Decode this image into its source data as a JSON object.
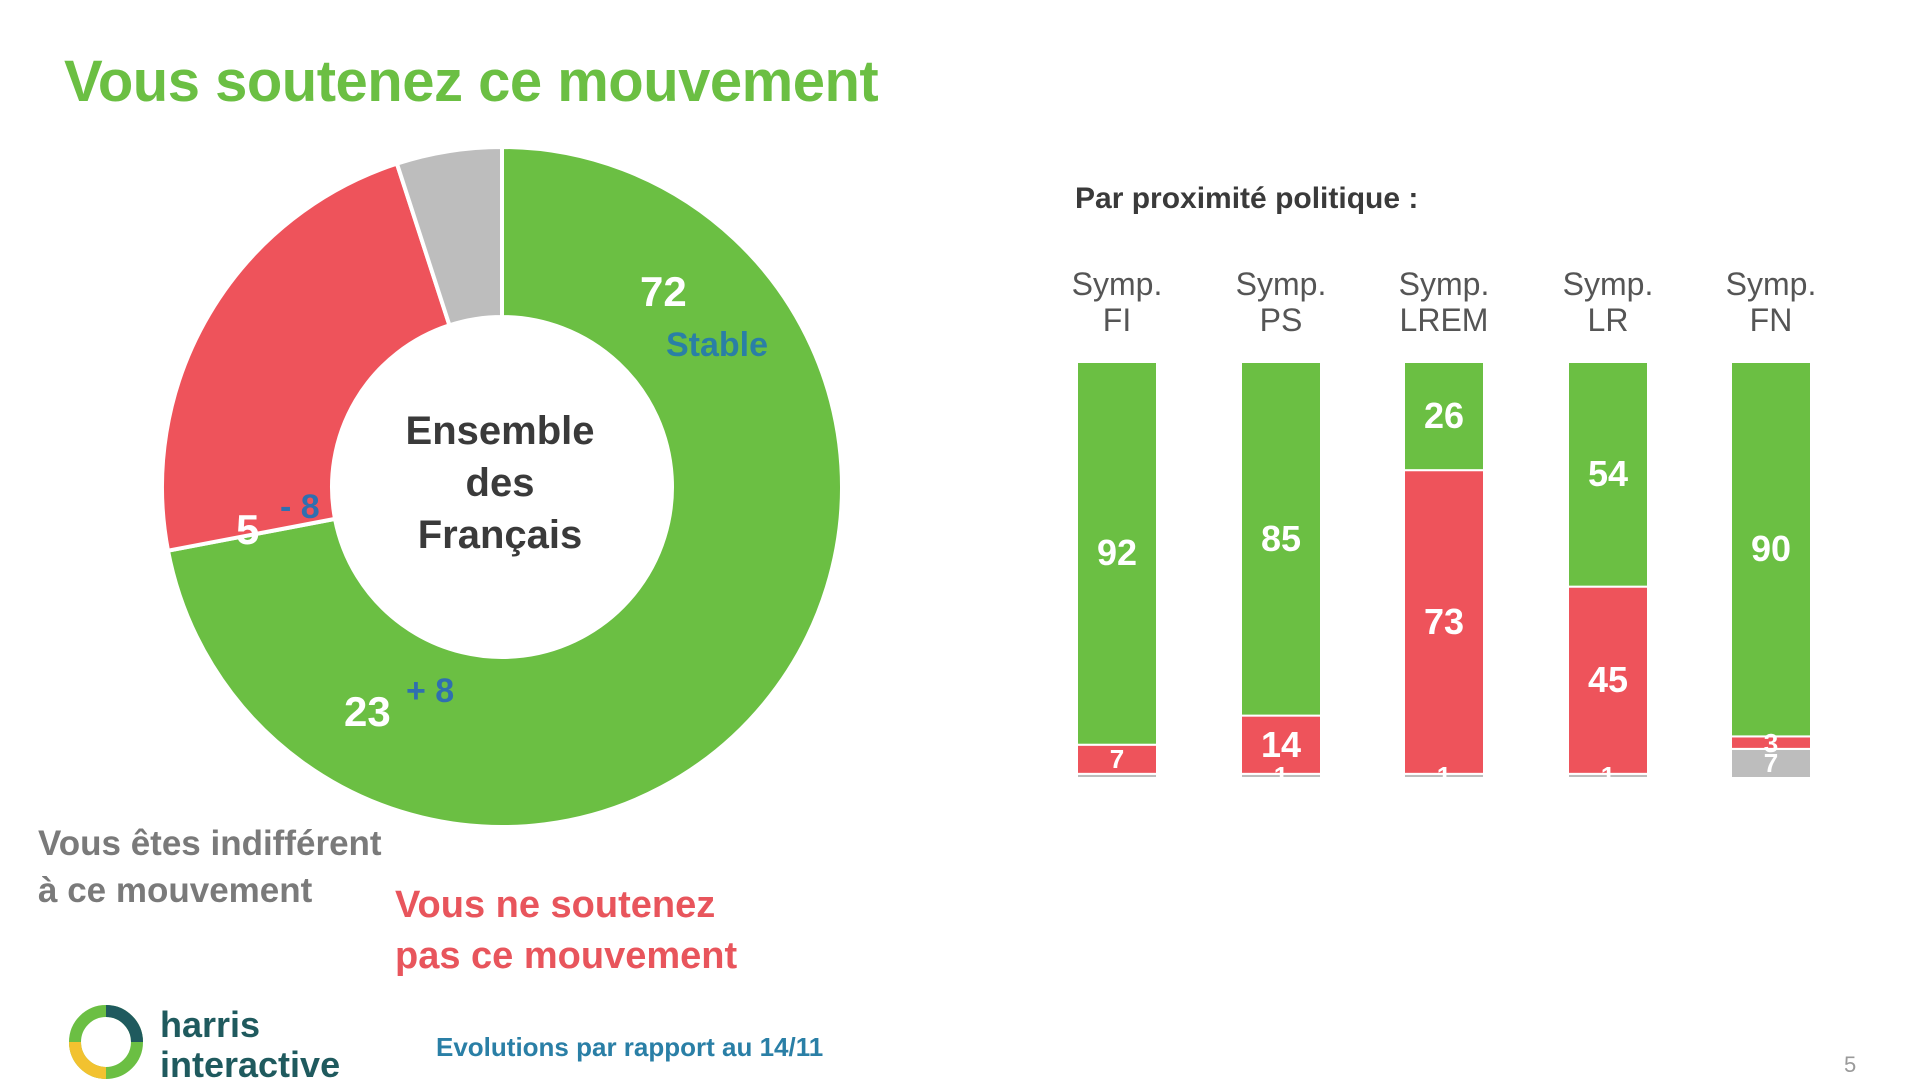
{
  "title": "Vous soutenez ce mouvement",
  "donut": {
    "center_lines": [
      "Ensemble",
      "des",
      "Français"
    ],
    "labels": {
      "support_value": "72",
      "support_evolution": "Stable",
      "indifferent_value": "5",
      "indifferent_evolution": "- 8",
      "oppose_value": "23",
      "oppose_evolution": "+ 8"
    }
  },
  "legend": {
    "indifferent_lines": [
      "Vous êtes indifférent",
      "à ce mouvement"
    ],
    "oppose_lines": [
      "Vous ne soutenez",
      "pas ce mouvement"
    ]
  },
  "bars_title": "Par proximité politique :",
  "footer_note": "Evolutions  par rapport au 14/11",
  "logo": {
    "line1": "harris",
    "line2": "interactive"
  },
  "page_number": "5",
  "colors": {
    "support": "#6bbf43",
    "oppose": "#ee535b",
    "indifferent": "#bdbdbd"
  },
  "chart_data": [
    {
      "type": "pie",
      "title": "Vous soutenez ce mouvement",
      "slices": [
        {
          "name": "Vous soutenez ce mouvement",
          "value": 72,
          "evolution": "Stable",
          "color": "#6bbf43"
        },
        {
          "name": "Vous ne soutenez pas ce mouvement",
          "value": 23,
          "evolution": "+ 8",
          "color": "#ee535b"
        },
        {
          "name": "Vous êtes indifférent à ce mouvement",
          "value": 5,
          "evolution": "- 8",
          "color": "#bdbdbd"
        }
      ],
      "center_label": "Ensemble des Français"
    },
    {
      "type": "bar",
      "stacked": true,
      "orientation": "vertical",
      "title": "Par proximité politique :",
      "categories": [
        [
          "Symp.",
          "FI"
        ],
        [
          "Symp.",
          "PS"
        ],
        [
          "Symp.",
          "LREM"
        ],
        [
          "Symp.",
          "LR"
        ],
        [
          "Symp.",
          "FN"
        ]
      ],
      "series": [
        {
          "key": "indifferent",
          "color": "#bdbdbd",
          "values": [
            1,
            1,
            1,
            1,
            7
          ],
          "labels": [
            "",
            "1",
            "1",
            "1",
            "7"
          ]
        },
        {
          "key": "oppose",
          "color": "#ee535b",
          "values": [
            7,
            14,
            73,
            45,
            3
          ],
          "labels": [
            "7",
            "14",
            "73",
            "45",
            "3"
          ]
        },
        {
          "key": "support",
          "color": "#6bbf43",
          "values": [
            92,
            85,
            26,
            54,
            90
          ],
          "labels": [
            "92",
            "85",
            "26",
            "54",
            "90"
          ]
        }
      ]
    }
  ]
}
